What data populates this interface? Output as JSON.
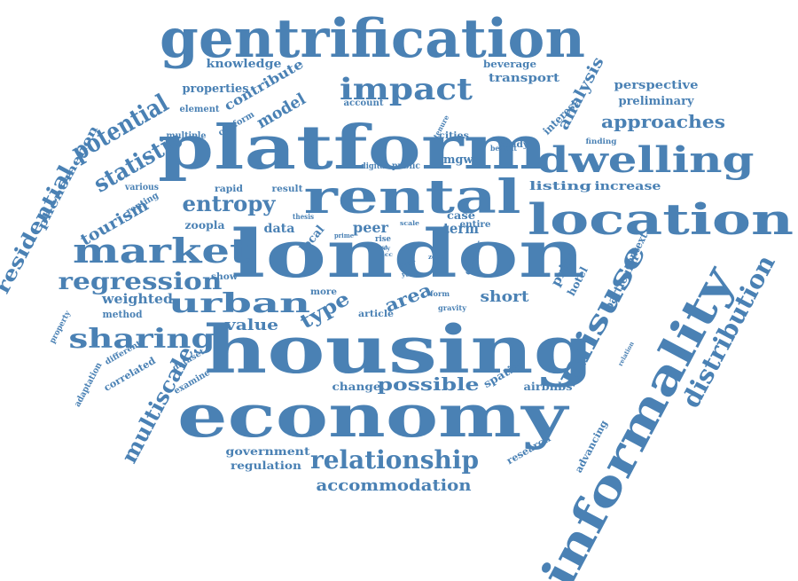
{
  "word_cloud": {
    "color": "#4a81b4",
    "words": [
      {
        "text": "gentrification",
        "rank": 1
      },
      {
        "text": "housing",
        "rank": 1
      },
      {
        "text": "london",
        "rank": 1
      },
      {
        "text": "platform",
        "rank": 1
      },
      {
        "text": "economy",
        "rank": 1
      },
      {
        "text": "rental",
        "rank": 2
      },
      {
        "text": "location",
        "rank": 2
      },
      {
        "text": "informality",
        "rank": 2
      },
      {
        "text": "dwelling",
        "rank": 2
      },
      {
        "text": "market",
        "rank": 2
      },
      {
        "text": "impact",
        "rank": 3
      },
      {
        "text": "misuse",
        "rank": 3
      },
      {
        "text": "relationship",
        "rank": 3
      },
      {
        "text": "urban",
        "rank": 3
      },
      {
        "text": "sharing",
        "rank": 3
      },
      {
        "text": "regression",
        "rank": 3
      },
      {
        "text": "distribution",
        "rank": 3
      },
      {
        "text": "potential",
        "rank": 3
      },
      {
        "text": "statistic",
        "rank": 3
      },
      {
        "text": "residential",
        "rank": 3
      },
      {
        "text": "entropy",
        "rank": 3
      },
      {
        "text": "multiscale",
        "rank": 3
      },
      {
        "text": "approaches",
        "rank": 4
      },
      {
        "text": "analysis",
        "rank": 4
      },
      {
        "text": "accommodation",
        "rank": 4
      },
      {
        "text": "possible",
        "rank": 4
      },
      {
        "text": "type",
        "rank": 4
      },
      {
        "text": "area",
        "rank": 4
      },
      {
        "text": "tourism",
        "rank": 4
      },
      {
        "text": "model",
        "rank": 4
      },
      {
        "text": "peer",
        "rank": 4
      },
      {
        "text": "term",
        "rank": 4
      },
      {
        "text": "value",
        "rank": 4
      },
      {
        "text": "short",
        "rank": 4
      },
      {
        "text": "contribute",
        "rank": 4
      },
      {
        "text": "transport",
        "rank": 5
      },
      {
        "text": "perspective",
        "rank": 5
      },
      {
        "text": "preliminary",
        "rank": 5
      },
      {
        "text": "listing",
        "rank": 5
      },
      {
        "text": "increase",
        "rank": 5
      },
      {
        "text": "price",
        "rank": 5
      },
      {
        "text": "hotel",
        "rank": 5
      },
      {
        "text": "particular",
        "rank": 5
      },
      {
        "text": "context",
        "rank": 5
      },
      {
        "text": "weighted",
        "rank": 5
      },
      {
        "text": "zoopla",
        "rank": 5
      },
      {
        "text": "data",
        "rank": 5
      },
      {
        "text": "local",
        "rank": 5
      },
      {
        "text": "mgwr",
        "rank": 5
      },
      {
        "text": "phenomenon",
        "rank": 5
      },
      {
        "text": "knowledge",
        "rank": 5
      },
      {
        "text": "properties",
        "rank": 5
      },
      {
        "text": "interest",
        "rank": 5
      },
      {
        "text": "beverage",
        "rank": 5
      },
      {
        "text": "change",
        "rank": 5
      },
      {
        "text": "spatial",
        "rank": 5
      },
      {
        "text": "airbnbs",
        "rank": 5
      },
      {
        "text": "government",
        "rank": 5
      },
      {
        "text": "regulation",
        "rank": 5
      },
      {
        "text": "case",
        "rank": 5
      },
      {
        "text": "method",
        "rank": 5
      },
      {
        "text": "correlated",
        "rank": 5
      },
      {
        "text": "advancing",
        "rank": 5
      },
      {
        "text": "research",
        "rank": 5
      },
      {
        "text": "renting",
        "rank": 5
      },
      {
        "text": "element",
        "rank": 6
      },
      {
        "text": "conform",
        "rank": 6
      },
      {
        "text": "account",
        "rank": 6
      },
      {
        "text": "multiple",
        "rank": 6
      },
      {
        "text": "various",
        "rank": 6
      },
      {
        "text": "rapid",
        "rank": 6
      },
      {
        "text": "result",
        "rank": 6
      },
      {
        "text": "digital",
        "rank": 6
      },
      {
        "text": "public",
        "rank": 6
      },
      {
        "text": "cities",
        "rank": 6
      },
      {
        "text": "benefit",
        "rank": 6
      },
      {
        "text": "study",
        "rank": 6
      },
      {
        "text": "finding",
        "rank": 6
      },
      {
        "text": "entire",
        "rank": 6
      },
      {
        "text": "chapter",
        "rank": 6
      },
      {
        "text": "show",
        "rank": 6
      },
      {
        "text": "more",
        "rank": 6
      },
      {
        "text": "article",
        "rank": 6
      },
      {
        "text": "form",
        "rank": 6
      },
      {
        "text": "gravity",
        "rank": 6
      },
      {
        "text": "property",
        "rank": 6
      },
      {
        "text": "adaptation",
        "rank": 6
      },
      {
        "text": "different",
        "rank": 6
      },
      {
        "text": "dataset",
        "rank": 6
      },
      {
        "text": "examine",
        "rank": 6
      },
      {
        "text": "relation",
        "rank": 7
      },
      {
        "text": "thesis",
        "rank": 7
      },
      {
        "text": "prime",
        "rank": 7
      },
      {
        "text": "scale",
        "rank": 7
      },
      {
        "text": "rise",
        "rank": 7
      },
      {
        "text": "last",
        "rank": 7
      },
      {
        "text": "food",
        "rank": 7
      },
      {
        "text": "year",
        "rank": 7
      },
      {
        "text": "tenure",
        "rank": 7
      },
      {
        "text": "zone",
        "rank": 7
      },
      {
        "text": "key",
        "rank": 7
      },
      {
        "text": "acc",
        "rank": 7
      }
    ]
  }
}
